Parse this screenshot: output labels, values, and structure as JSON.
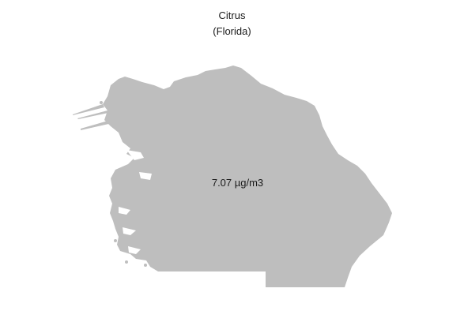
{
  "map": {
    "title": "Citrus",
    "subtitle": "(Florida)",
    "value_label": "7.07 µg/m3",
    "fill_color": "#bebebe",
    "background_color": "#ffffff"
  }
}
